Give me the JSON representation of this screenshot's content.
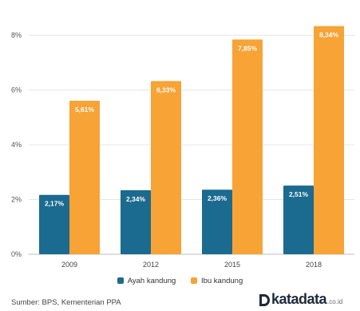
{
  "chart_data": {
    "type": "bar",
    "categories": [
      "2009",
      "2012",
      "2015",
      "2018"
    ],
    "series": [
      {
        "name": "Ayah kandung",
        "values": [
          2.17,
          2.34,
          2.36,
          2.51
        ],
        "labels": [
          "2,17%",
          "2,34%",
          "2,36%",
          "2,51%"
        ],
        "color": "#1b6a8f"
      },
      {
        "name": "Ibu kandung",
        "values": [
          5.61,
          6.33,
          7.85,
          8.34
        ],
        "labels": [
          "5,61%",
          "6,33%",
          "7,85%",
          "8,34%"
        ],
        "color": "#f7a335"
      }
    ],
    "yticks": [
      0,
      2,
      4,
      6,
      8
    ],
    "ytick_labels": [
      "0%",
      "2%",
      "4%",
      "6%",
      "8%"
    ],
    "ylim": [
      0,
      9
    ],
    "grid": true,
    "legend_position": "bottom"
  },
  "source": "Sumber: BPS, Kementerian PPA",
  "logo": {
    "name": "katadata",
    "suffix": ".co.id"
  }
}
